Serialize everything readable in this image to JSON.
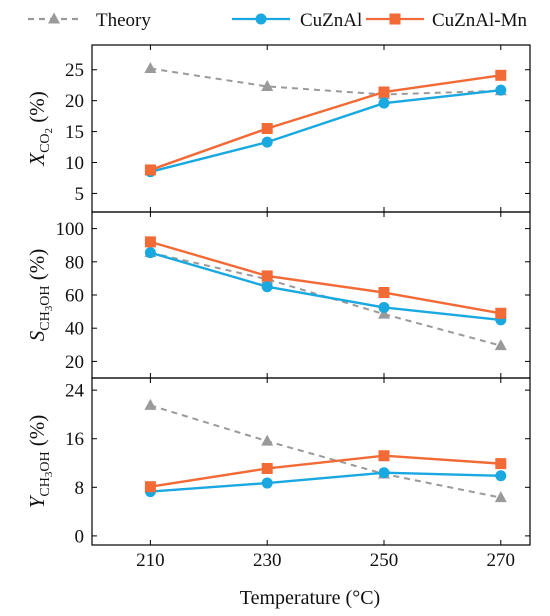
{
  "legend": [
    {
      "key": "theory",
      "label": "Theory",
      "color": "#9a9a9a",
      "marker": "triangle",
      "dash": true
    },
    {
      "key": "cuznal",
      "label": "CuZnAl",
      "color": "#1aa8e0",
      "marker": "circle",
      "dash": false
    },
    {
      "key": "cuznalmn",
      "label": "CuZnAl-Mn",
      "color": "#f26a35",
      "marker": "square",
      "dash": false
    }
  ],
  "chart_data": {
    "type": "line",
    "x": [
      210,
      230,
      250,
      270
    ],
    "xlabel": "Temperature (°C)",
    "xticks": [
      "210",
      "230",
      "250",
      "270"
    ],
    "xlim": [
      200,
      275
    ],
    "panels": [
      {
        "ylabel": {
          "main": "X",
          "sub": "CO",
          "subsub": "2",
          "unit": " (%)"
        },
        "ylim": [
          2,
          29
        ],
        "yticks": [
          5,
          10,
          15,
          20,
          25
        ],
        "series": [
          {
            "name": "Theory",
            "values": [
              25.2,
              22.3,
              21.0,
              21.6
            ]
          },
          {
            "name": "CuZnAl",
            "values": [
              8.5,
              13.3,
              19.6,
              21.7
            ]
          },
          {
            "name": "CuZnAl-Mn",
            "values": [
              8.8,
              15.5,
              21.4,
              24.1
            ]
          }
        ]
      },
      {
        "ylabel": {
          "main": "S",
          "sub": "CH",
          "subsub": "3",
          "subtail": "OH",
          "unit": " (%)"
        },
        "ylim": [
          10,
          110
        ],
        "yticks": [
          20,
          40,
          60,
          80,
          100
        ],
        "series": [
          {
            "name": "Theory",
            "values": [
              85.5,
              69.5,
              48.5,
              29.5
            ]
          },
          {
            "name": "CuZnAl",
            "values": [
              85.5,
              65.0,
              52.5,
              45.0
            ]
          },
          {
            "name": "CuZnAl-Mn",
            "values": [
              92.0,
              71.5,
              61.5,
              49.0
            ]
          }
        ]
      },
      {
        "ylabel": {
          "main": "Y",
          "sub": "CH",
          "subsub": "3",
          "subtail": "OH",
          "unit": " (%)"
        },
        "ylim": [
          -1.5,
          26
        ],
        "yticks": [
          0,
          8,
          16,
          24
        ],
        "series": [
          {
            "name": "Theory",
            "values": [
              21.5,
              15.6,
              10.2,
              6.3
            ]
          },
          {
            "name": "CuZnAl",
            "values": [
              7.3,
              8.7,
              10.4,
              9.9
            ]
          },
          {
            "name": "CuZnAl-Mn",
            "values": [
              8.1,
              11.1,
              13.2,
              11.9
            ]
          }
        ]
      }
    ]
  }
}
